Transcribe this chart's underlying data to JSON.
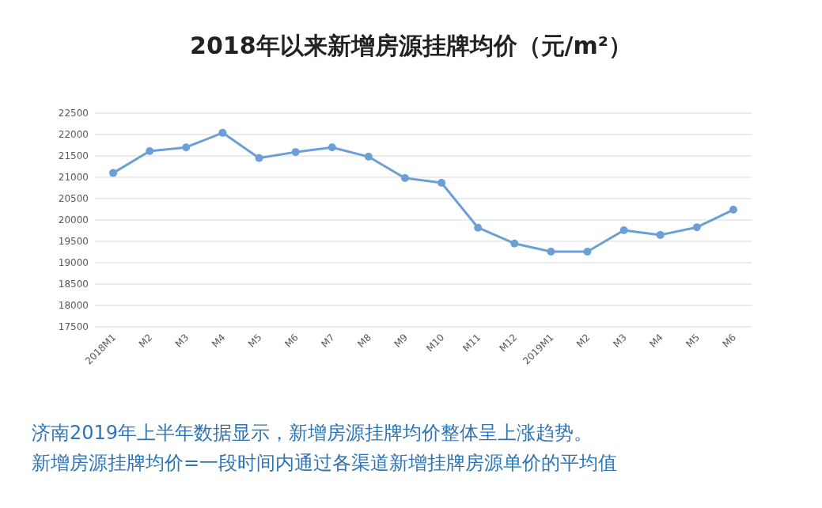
{
  "chart_data": {
    "type": "line",
    "title": "2018年以来新增房源挂牌均价（元/m²）",
    "categories": [
      "2018M1",
      "M2",
      "M3",
      "M4",
      "M5",
      "M6",
      "M7",
      "M8",
      "M9",
      "M10",
      "M11",
      "M12",
      "2019M1",
      "M2",
      "M3",
      "M4",
      "M5",
      "M6"
    ],
    "series": [
      {
        "color": "#6d9fd6",
        "values": [
          21100,
          21610,
          21700,
          22040,
          21450,
          21590,
          21700,
          21480,
          20980,
          20870,
          19820,
          19450,
          19260,
          19260,
          19760,
          19650,
          19830,
          20240
        ]
      }
    ],
    "ylim": [
      17500,
      22500
    ],
    "yticks": [
      17500,
      18000,
      18500,
      19000,
      19500,
      20000,
      20500,
      21000,
      21500,
      22000,
      22500
    ],
    "grid": "y",
    "marker": "circle",
    "line_style": "solid",
    "annotations": [
      "济南2019年上半年数据显示，新增房源挂牌均价整体呈上涨趋势。",
      "新增房源挂牌均价=一段时间内通过各渠道新增挂牌房源单价的平均值"
    ]
  }
}
